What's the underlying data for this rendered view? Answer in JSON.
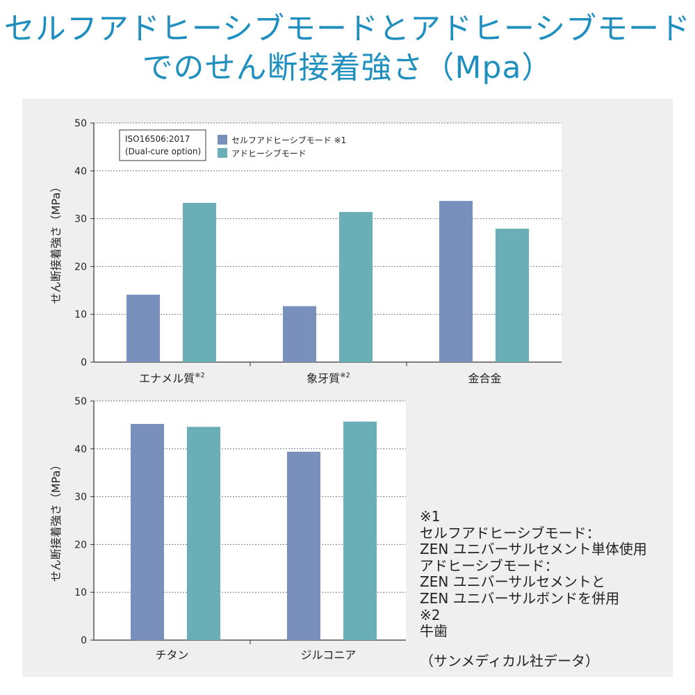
{
  "title": {
    "line1": "セルフアドヒーシブモードとアドヒーシブモード",
    "line2": "でのせん断接着強さ（Mpa）"
  },
  "colors": {
    "title": "#1f8fbf",
    "self_adhesive": "#7890bb",
    "adhesive": "#6aaeb8",
    "panel_bg": "#efefef",
    "plot_bg": "#ffffff"
  },
  "chart_data": [
    {
      "type": "bar",
      "categories": [
        "エナメル質",
        "象牙質",
        "金合金"
      ],
      "category_superscripts": [
        "※2",
        "※2",
        ""
      ],
      "series": [
        {
          "name": "セルフアドヒーシブモード ※1",
          "values": [
            14.1,
            11.7,
            33.7
          ]
        },
        {
          "name": "アドヒーシブモード",
          "values": [
            33.3,
            31.4,
            27.9
          ]
        }
      ],
      "ylabel": "せん断接着強さ（MPa）",
      "xlabel": "",
      "ylim": [
        0,
        50
      ],
      "yticks": [
        "0",
        "10",
        "20",
        "30",
        "40",
        "50"
      ],
      "grid": true,
      "legend_position": "top-left",
      "annotation": {
        "line1": "ISO16506:2017",
        "line2": "(Dual-cure option)"
      }
    },
    {
      "type": "bar",
      "categories": [
        "チタン",
        "ジルコニア"
      ],
      "category_superscripts": [
        "",
        ""
      ],
      "series": [
        {
          "name": "セルフアドヒーシブモード ※1",
          "values": [
            45.2,
            39.4
          ]
        },
        {
          "name": "アドヒーシブモード",
          "values": [
            44.6,
            45.7
          ]
        }
      ],
      "ylabel": "せん断接着強さ（MPa）",
      "xlabel": "",
      "ylim": [
        0,
        50
      ],
      "yticks": [
        "0",
        "10",
        "20",
        "30",
        "40",
        "50"
      ],
      "grid": true
    }
  ],
  "notes": [
    "※1",
    "セルフアドヒーシブモード：",
    "ZEN ユニバーサルセメント単体使用",
    "アドヒーシブモード：",
    "ZEN ユニバーサルセメントと",
    "ZEN ユニバーサルボンドを併用",
    "※2",
    "牛歯"
  ],
  "source": "（サンメディカル社データ）"
}
